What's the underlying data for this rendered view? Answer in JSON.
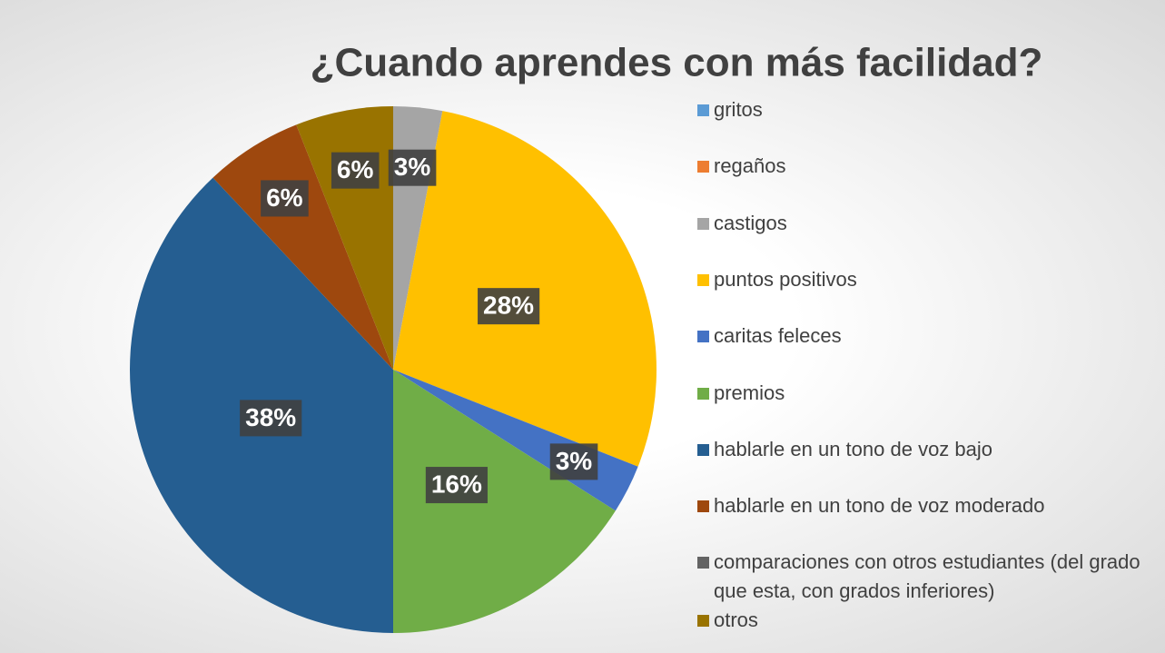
{
  "chart_data": {
    "type": "pie",
    "title": "¿Cuando aprendes con más facilidad?",
    "categories": [
      "gritos",
      "regaños",
      "castigos",
      "puntos positivos",
      "caritas feleces",
      "premios",
      "hablarle en un tono de voz bajo",
      "hablarle en un tono de voz moderado",
      "comparaciones con otros estudiantes (del grado que esta, con grados inferiores)",
      "otros"
    ],
    "values": [
      0,
      0,
      3,
      28,
      3,
      16,
      38,
      6,
      0,
      6
    ],
    "value_labels": [
      null,
      null,
      "3%",
      "28%",
      "3%",
      "16%",
      "38%",
      "6%",
      null,
      "6%"
    ],
    "colors": [
      "#5b9bd5",
      "#ed7d31",
      "#a5a5a5",
      "#ffc000",
      "#4472c4",
      "#70ad47",
      "#255e91",
      "#9e480e",
      "#636363",
      "#997300"
    ],
    "legend": "right"
  }
}
